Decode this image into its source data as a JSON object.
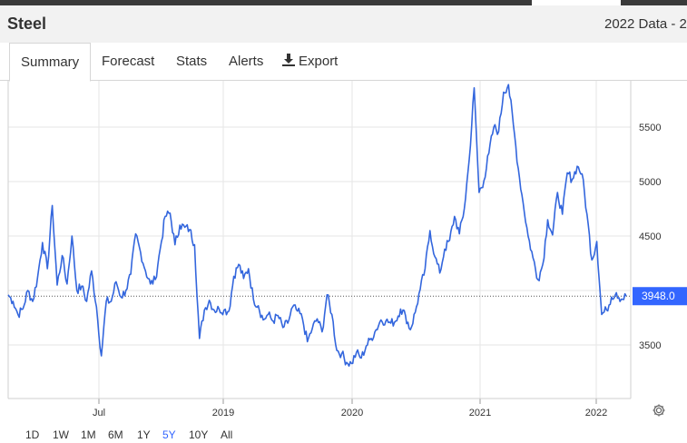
{
  "header": {
    "title": "Steel",
    "data_label": "2022 Data - 2"
  },
  "tabs": [
    {
      "label": "Summary",
      "active": true
    },
    {
      "label": "Forecast"
    },
    {
      "label": "Stats"
    },
    {
      "label": "Alerts"
    },
    {
      "label": "Export",
      "icon": "download-icon"
    }
  ],
  "ranges": [
    {
      "label": "1D"
    },
    {
      "label": "1W"
    },
    {
      "label": "1M"
    },
    {
      "label": "6M"
    },
    {
      "label": "1Y"
    },
    {
      "label": "5Y",
      "active": true
    },
    {
      "label": "10Y"
    },
    {
      "label": "All"
    }
  ],
  "colors": {
    "line": "#3366dd",
    "accent": "#3366ff",
    "grid": "#e6e6e6"
  },
  "chart_data": {
    "type": "line",
    "title": "",
    "xlabel": "",
    "ylabel": "",
    "y_ticks": [
      3500,
      4000,
      4500,
      5000,
      5500
    ],
    "x_ticks": [
      "Jul",
      "2019",
      "2020",
      "2021",
      "2022"
    ],
    "ylim": [
      3000,
      5900
    ],
    "grid": true,
    "current_value": "3948.0",
    "reference_line": 3948,
    "series": [
      {
        "values": [
          3960,
          3900,
          3780,
          3830,
          4000,
          3900,
          4120,
          4440,
          4200,
          4780,
          4050,
          4320,
          4060,
          4500,
          4000,
          4040,
          3900,
          4180,
          3850,
          3400,
          3900,
          3900,
          4080,
          3940,
          4000,
          4150,
          4520,
          4350,
          4180,
          4060,
          4100,
          4380,
          4680,
          4710,
          4420,
          4600,
          4580,
          4560,
          4420,
          3560,
          3820,
          3910,
          3820,
          3830,
          3820,
          3810,
          4130,
          4240,
          4110,
          4200,
          3920,
          3860,
          3730,
          3780,
          3720,
          3770,
          3660,
          3700,
          3850,
          3810,
          3740,
          3530,
          3650,
          3740,
          3620,
          3960,
          3780,
          3450,
          3420,
          3340,
          3330,
          3430,
          3380,
          3490,
          3560,
          3640,
          3730,
          3720,
          3700,
          3720,
          3830,
          3770,
          3640,
          3800,
          4010,
          4200,
          4550,
          4310,
          4160,
          4380,
          4460,
          4680,
          4520,
          4750,
          5200,
          5860,
          4900,
          5010,
          5260,
          5500,
          5460,
          5820,
          5890,
          5520,
          5120,
          4800,
          4500,
          4300,
          4100,
          4240,
          4650,
          4510,
          4900,
          4700,
          5080,
          5020,
          5140,
          5070,
          4700,
          4280,
          4450,
          3780,
          3820,
          3940,
          3980,
          3920,
          3948
        ]
      }
    ]
  }
}
